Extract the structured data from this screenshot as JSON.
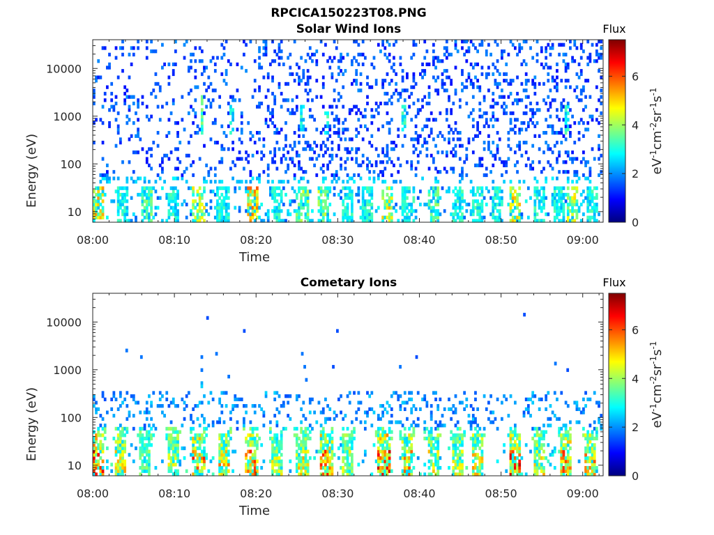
{
  "figure_title": "RPCICA150223T08.PNG",
  "colormap_name": "jet",
  "colors": {
    "jet": [
      "#00007f",
      "#0000ff",
      "#007fff",
      "#00ffff",
      "#7fff7f",
      "#ffff00",
      "#ff7f00",
      "#ff0000",
      "#7f0000"
    ],
    "axis": "#262626",
    "background": "#ffffff"
  },
  "chart_data": [
    {
      "type": "heatmap",
      "title": "Solar Wind Ions",
      "xlabel": "Time",
      "ylabel": "Energy (eV)",
      "x_ticks": [
        "08:00",
        "08:10",
        "08:20",
        "08:30",
        "08:40",
        "08:50",
        "09:00"
      ],
      "x_tick_minutes": [
        0,
        10,
        20,
        30,
        40,
        50,
        60
      ],
      "x_range_minutes": [
        0,
        62.5
      ],
      "yscale": "log",
      "y_ticks": [
        10,
        100,
        1000,
        10000
      ],
      "y_tick_labels": [
        "10",
        "100",
        "1000",
        "10000"
      ],
      "ylim": [
        6,
        40000
      ],
      "grid": false,
      "colorbar": {
        "title": "Flux",
        "label": "eV-1cm-2sr-1s-1",
        "clim": [
          0,
          7.5
        ],
        "ticks": [
          0,
          2,
          4,
          6
        ],
        "tick_labels": [
          "0",
          "2",
          "4",
          "6"
        ]
      },
      "features": {
        "description_values": "sparse blue background counts (flux 1-2) from 50 eV to 40000 eV; low-energy bursts (flux 3-6) below 30 eV roughly every 2.5 min; faint column near 08:13 around 1500 eV",
        "burst_minutes": [
          0.5,
          3.5,
          6.5,
          9.8,
          12.8,
          15.8,
          19.5,
          22.5,
          25.5,
          28.0,
          31.0,
          33.5,
          36.0,
          38.5,
          41.5,
          44.5,
          47.0,
          49.5,
          51.5,
          54.5,
          57.0,
          58.5,
          61.0
        ],
        "burst_energy_range_eV": [
          6,
          30
        ],
        "burst_peak_flux": [
          5.5,
          3.5,
          4.0,
          3.5,
          5.0,
          3.5,
          6.0,
          3.5,
          4.5,
          4.5,
          3.5,
          3.5,
          5.5,
          3.5,
          4.0,
          3.5,
          3.5,
          3.5,
          5.5,
          3.5,
          3.5,
          5.0,
          3.5
        ],
        "background_flux": [
          1.0,
          2.0
        ],
        "background_energy_range_eV": [
          50,
          40000
        ]
      }
    },
    {
      "type": "heatmap",
      "title": "Cometary Ions",
      "xlabel": "Time",
      "ylabel": "Energy (eV)",
      "x_ticks": [
        "08:00",
        "08:10",
        "08:20",
        "08:30",
        "08:40",
        "08:50",
        "09:00"
      ],
      "x_tick_minutes": [
        0,
        10,
        20,
        30,
        40,
        50,
        60
      ],
      "x_range_minutes": [
        0,
        62.5
      ],
      "yscale": "log",
      "y_ticks": [
        10,
        100,
        1000,
        10000
      ],
      "y_tick_labels": [
        "10",
        "100",
        "1000",
        "10000"
      ],
      "ylim": [
        6,
        40000
      ],
      "grid": false,
      "colorbar": {
        "title": "Flux",
        "label": "eV-1cm-2sr-1s-1",
        "clim": [
          0,
          7.5
        ],
        "ticks": [
          0,
          2,
          4,
          6
        ],
        "tick_labels": [
          "0",
          "2",
          "4",
          "6"
        ]
      },
      "features": {
        "description_values": "strong low-energy bursts (flux 4-7) below 30 eV roughly every 2.5 min; scattered blue counts 50-300 eV; isolated points up to 13000 eV",
        "burst_minutes": [
          0.5,
          3.3,
          6.3,
          9.8,
          12.8,
          16.0,
          19.3,
          22.5,
          25.5,
          28.5,
          31.0,
          35.5,
          38.3,
          41.5,
          44.5,
          47.0,
          51.5,
          54.5,
          57.8,
          60.8
        ],
        "burst_energy_range_eV": [
          6,
          40
        ],
        "burst_peak_flux": [
          7.0,
          5.5,
          4.0,
          5.0,
          6.5,
          6.0,
          6.5,
          5.0,
          5.5,
          6.5,
          5.0,
          7.0,
          6.0,
          5.5,
          5.0,
          5.5,
          7.0,
          5.5,
          6.5,
          6.0
        ],
        "scatter_energy_range_eV": [
          50,
          320
        ],
        "scatter_flux": [
          1.5,
          2.5
        ],
        "isolated_points": [
          {
            "t": 4.0,
            "e": 2200,
            "f": 1.8
          },
          {
            "t": 5.8,
            "e": 1850,
            "f": 1.8
          },
          {
            "t": 13.2,
            "e": 1600,
            "f": 1.8
          },
          {
            "t": 13.2,
            "e": 900,
            "f": 1.8
          },
          {
            "t": 13.2,
            "e": 500,
            "f": 2.2
          },
          {
            "t": 13.2,
            "e": 420,
            "f": 2.5
          },
          {
            "t": 13.9,
            "e": 11800,
            "f": 1.5
          },
          {
            "t": 15.0,
            "e": 2000,
            "f": 1.8
          },
          {
            "t": 16.5,
            "e": 700,
            "f": 1.8
          },
          {
            "t": 18.4,
            "e": 5800,
            "f": 1.5
          },
          {
            "t": 25.5,
            "e": 2100,
            "f": 1.8
          },
          {
            "t": 25.8,
            "e": 1000,
            "f": 1.8
          },
          {
            "t": 26.0,
            "e": 580,
            "f": 1.8
          },
          {
            "t": 29.3,
            "e": 1000,
            "f": 1.5
          },
          {
            "t": 29.8,
            "e": 5800,
            "f": 1.5
          },
          {
            "t": 37.5,
            "e": 1000,
            "f": 1.8
          },
          {
            "t": 39.5,
            "e": 1600,
            "f": 1.5
          },
          {
            "t": 52.7,
            "e": 13500,
            "f": 1.5
          },
          {
            "t": 56.5,
            "e": 1250,
            "f": 1.8
          },
          {
            "t": 58.0,
            "e": 900,
            "f": 1.5
          }
        ]
      }
    }
  ]
}
